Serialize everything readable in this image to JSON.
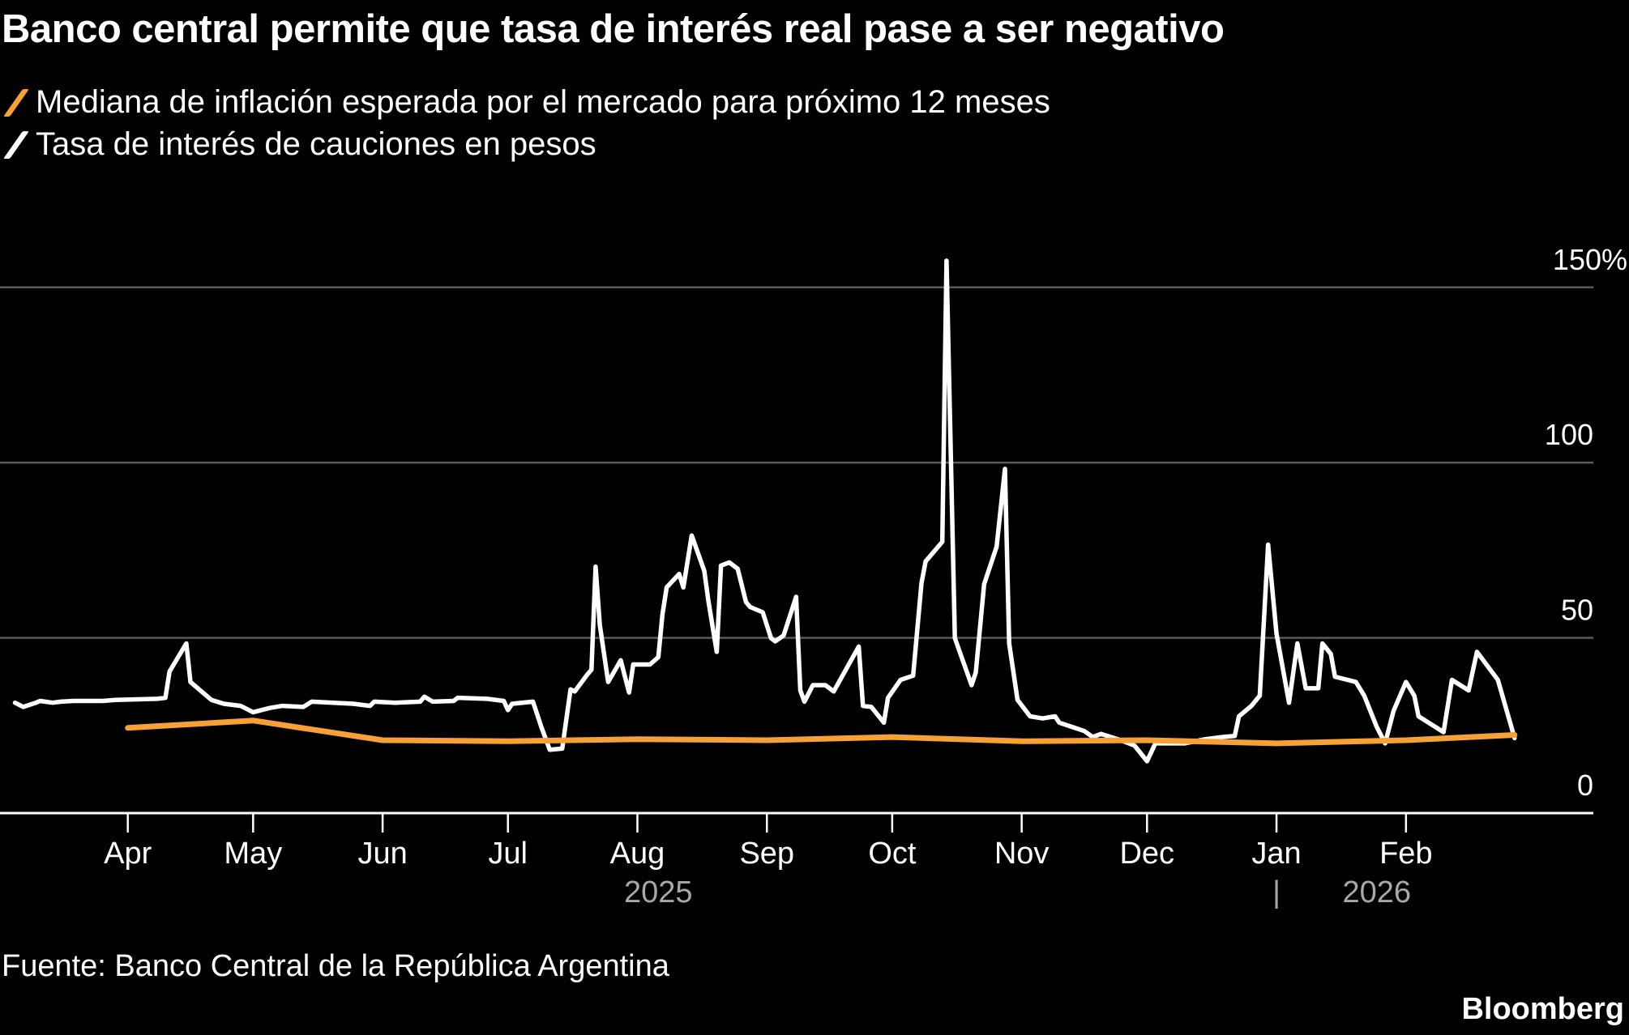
{
  "chart_data": {
    "type": "line",
    "title": "Banco central permite que tasa de interés real pase a ser negativo",
    "x_unit": "days since 2025-04-01",
    "ylim": [
      0,
      150
    ],
    "y_ticks": [
      {
        "value": 0,
        "label": "0"
      },
      {
        "value": 50,
        "label": "50"
      },
      {
        "value": 100,
        "label": "100"
      },
      {
        "value": 150,
        "label": "150%"
      }
    ],
    "x_ticks": [
      {
        "day": 0,
        "label": "Apr"
      },
      {
        "day": 30,
        "label": "May"
      },
      {
        "day": 61,
        "label": "Jun"
      },
      {
        "day": 91,
        "label": "Jul"
      },
      {
        "day": 122,
        "label": "Aug"
      },
      {
        "day": 153,
        "label": "Sep"
      },
      {
        "day": 183,
        "label": "Oct"
      },
      {
        "day": 214,
        "label": "Nov"
      },
      {
        "day": 244,
        "label": "Dec"
      },
      {
        "day": 275,
        "label": "Jan"
      },
      {
        "day": 306,
        "label": "Feb"
      }
    ],
    "year_labels": [
      {
        "day": 127,
        "label": "2025"
      },
      {
        "day": 299,
        "label": "2026"
      }
    ],
    "year_separator": {
      "day": 275,
      "label": "|"
    },
    "grid": true,
    "legend_position": "top-left",
    "series": [
      {
        "name": "Mediana de inflación esperada por el mercado para próximo 12 meses",
        "color": "#f7a035",
        "points": [
          [
            0,
            24.3
          ],
          [
            30,
            26.4
          ],
          [
            61,
            20.8
          ],
          [
            91,
            20.5
          ],
          [
            122,
            21.1
          ],
          [
            153,
            20.8
          ],
          [
            183,
            21.7
          ],
          [
            214,
            20.5
          ],
          [
            244,
            20.8
          ],
          [
            275,
            19.9
          ],
          [
            306,
            20.8
          ],
          [
            332,
            22.3
          ]
        ]
      },
      {
        "name": "Tasa de interés de cauciones en pesos",
        "color": "#ffffff",
        "points": [
          [
            -27,
            31.5
          ],
          [
            -25,
            30.3
          ],
          [
            -22,
            31.5
          ],
          [
            -21,
            32.0
          ],
          [
            -18,
            31.5
          ],
          [
            -16,
            31.8
          ],
          [
            -13,
            32.0
          ],
          [
            -6,
            32.0
          ],
          [
            -3,
            32.3
          ],
          [
            7,
            32.6
          ],
          [
            9,
            32.9
          ],
          [
            10,
            40.4
          ],
          [
            14,
            48.4
          ],
          [
            15,
            37.4
          ],
          [
            20,
            32.3
          ],
          [
            23,
            31.2
          ],
          [
            27,
            30.6
          ],
          [
            30,
            28.8
          ],
          [
            34,
            30.0
          ],
          [
            37,
            30.6
          ],
          [
            42,
            30.3
          ],
          [
            44,
            31.8
          ],
          [
            54,
            31.2
          ],
          [
            58,
            30.6
          ],
          [
            59,
            31.8
          ],
          [
            64,
            31.5
          ],
          [
            70,
            31.8
          ],
          [
            71,
            33.2
          ],
          [
            73,
            31.8
          ],
          [
            78,
            32.0
          ],
          [
            79,
            32.9
          ],
          [
            86,
            32.6
          ],
          [
            90,
            32.0
          ],
          [
            91,
            29.4
          ],
          [
            92,
            31.2
          ],
          [
            97,
            31.8
          ],
          [
            99,
            24.6
          ],
          [
            101,
            18.1
          ],
          [
            104,
            18.4
          ],
          [
            106,
            35.3
          ],
          [
            107,
            34.7
          ],
          [
            110,
            39.5
          ],
          [
            111,
            40.9
          ],
          [
            112,
            70.3
          ],
          [
            113,
            53.7
          ],
          [
            115,
            37.4
          ],
          [
            118,
            43.6
          ],
          [
            120,
            34.4
          ],
          [
            121,
            42.4
          ],
          [
            125,
            42.4
          ],
          [
            127,
            44.5
          ],
          [
            128,
            56.7
          ],
          [
            129,
            64.4
          ],
          [
            132,
            68.2
          ],
          [
            133,
            64.4
          ],
          [
            135,
            79.2
          ],
          [
            138,
            69.1
          ],
          [
            139,
            60.5
          ],
          [
            141,
            46.0
          ],
          [
            142,
            70.6
          ],
          [
            144,
            71.5
          ],
          [
            146,
            69.7
          ],
          [
            148,
            60.2
          ],
          [
            149,
            58.8
          ],
          [
            152,
            57.3
          ],
          [
            154,
            49.9
          ],
          [
            155,
            49.0
          ],
          [
            157,
            50.7
          ],
          [
            160,
            61.7
          ],
          [
            161,
            35.0
          ],
          [
            162,
            31.8
          ],
          [
            164,
            36.5
          ],
          [
            167,
            36.5
          ],
          [
            169,
            34.7
          ],
          [
            175,
            47.5
          ],
          [
            176,
            30.6
          ],
          [
            178,
            30.3
          ],
          [
            181,
            25.8
          ],
          [
            182,
            32.9
          ],
          [
            185,
            38.0
          ],
          [
            188,
            39.2
          ],
          [
            190,
            65.6
          ],
          [
            191,
            71.8
          ],
          [
            195,
            77.4
          ],
          [
            196,
            157.6
          ],
          [
            198,
            49.9
          ],
          [
            202,
            36.5
          ],
          [
            203,
            40.1
          ],
          [
            205,
            65.3
          ],
          [
            208,
            76.0
          ],
          [
            210,
            98.2
          ],
          [
            211,
            48.4
          ],
          [
            213,
            32.3
          ],
          [
            216,
            27.6
          ],
          [
            219,
            27.0
          ],
          [
            222,
            27.6
          ],
          [
            223,
            25.8
          ],
          [
            226,
            24.6
          ],
          [
            229,
            23.4
          ],
          [
            231,
            21.7
          ],
          [
            233,
            22.6
          ],
          [
            237,
            21.1
          ],
          [
            241,
            19.3
          ],
          [
            242,
            17.8
          ],
          [
            244,
            14.8
          ],
          [
            246,
            19.9
          ],
          [
            253,
            19.9
          ],
          [
            258,
            21.1
          ],
          [
            262,
            21.7
          ],
          [
            265,
            22.0
          ],
          [
            266,
            27.6
          ],
          [
            269,
            30.6
          ],
          [
            271,
            33.5
          ],
          [
            273,
            76.6
          ],
          [
            275,
            51.3
          ],
          [
            278,
            31.5
          ],
          [
            280,
            48.4
          ],
          [
            282,
            35.6
          ],
          [
            285,
            35.6
          ],
          [
            286,
            48.4
          ],
          [
            288,
            45.4
          ],
          [
            289,
            38.9
          ],
          [
            294,
            37.4
          ],
          [
            296,
            33.5
          ],
          [
            299,
            24.6
          ],
          [
            301,
            19.9
          ],
          [
            303,
            29.1
          ],
          [
            306,
            37.4
          ],
          [
            308,
            33.5
          ],
          [
            309,
            27.6
          ],
          [
            313,
            24.6
          ],
          [
            315,
            23.1
          ],
          [
            317,
            38.0
          ],
          [
            321,
            35.0
          ],
          [
            323,
            46.0
          ],
          [
            328,
            38.0
          ],
          [
            332,
            21.4
          ]
        ]
      }
    ]
  },
  "source": "Fuente: Banco Central de la República Argentina",
  "brand": "Bloomberg"
}
